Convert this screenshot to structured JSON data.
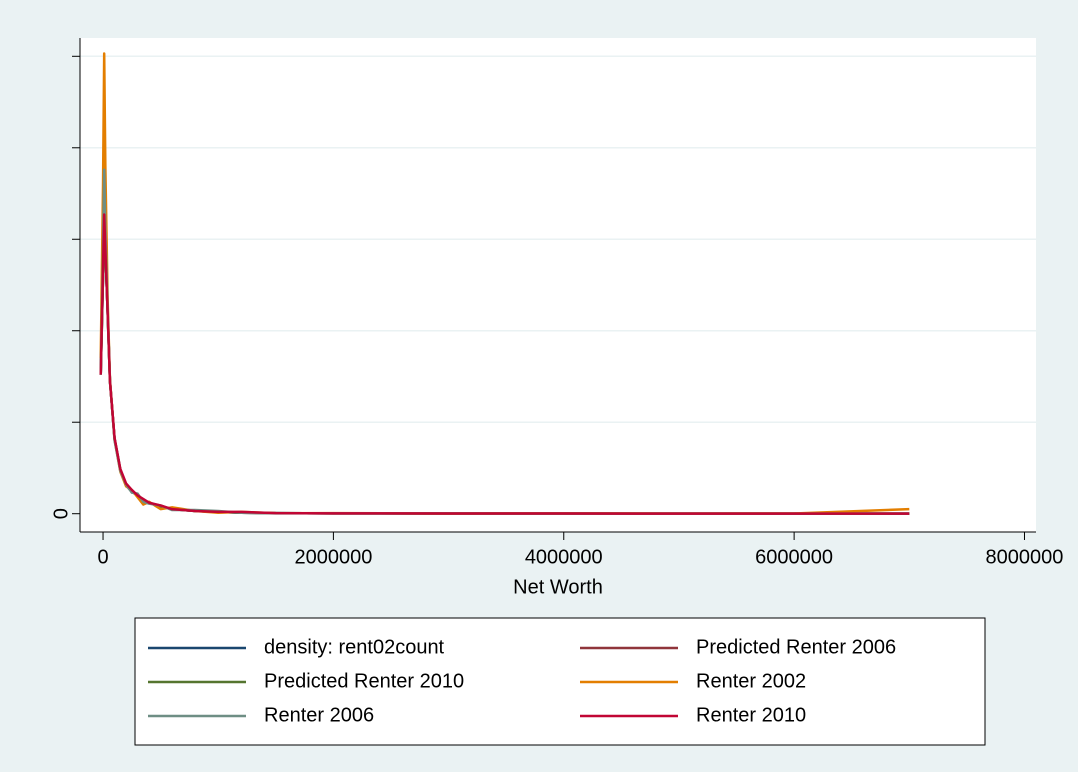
{
  "chart_data": {
    "type": "line",
    "x_label": "Net Worth",
    "x": [
      -20000,
      0,
      10000,
      20000,
      40000,
      60000,
      100000,
      150000,
      200000,
      250000,
      300000,
      350000,
      400000,
      500000,
      600000,
      800000,
      1000000,
      1200000,
      1500000,
      2000000,
      3000000,
      4000000,
      5000000,
      6000000,
      7000000
    ],
    "series": [
      {
        "name": "density: rent02count",
        "color": "#1a476f",
        "values": [
          1.52,
          2.6,
          3.3,
          2.9,
          2.2,
          1.45,
          0.82,
          0.48,
          0.31,
          0.25,
          0.2,
          0.15,
          0.12,
          0.08,
          0.05,
          0.03,
          0.02,
          0.01,
          0.006,
          0.004,
          0.002,
          0.002,
          0.001,
          0.001,
          0.001
        ]
      },
      {
        "name": "Predicted Renter 2006",
        "color": "#90353b",
        "values": [
          1.52,
          2.6,
          3.3,
          2.9,
          2.2,
          1.45,
          0.82,
          0.48,
          0.31,
          0.24,
          0.2,
          0.15,
          0.12,
          0.08,
          0.05,
          0.03,
          0.02,
          0.01,
          0.006,
          0.004,
          0.002,
          0.002,
          0.001,
          0.001,
          0.001
        ]
      },
      {
        "name": "Predicted Renter 2010",
        "color": "#55752f",
        "values": [
          1.52,
          2.6,
          3.3,
          2.9,
          2.2,
          1.45,
          0.82,
          0.48,
          0.31,
          0.24,
          0.2,
          0.15,
          0.12,
          0.08,
          0.05,
          0.03,
          0.02,
          0.01,
          0.006,
          0.004,
          0.002,
          0.002,
          0.001,
          0.001,
          0.001
        ]
      },
      {
        "name": "Renter 2002",
        "color": "#e37e00",
        "values": [
          1.7,
          3.6,
          5.03,
          3.8,
          2.34,
          1.47,
          0.81,
          0.46,
          0.3,
          0.26,
          0.18,
          0.1,
          0.13,
          0.05,
          0.07,
          0.03,
          0.01,
          0.02,
          0.005,
          0.006,
          0.002,
          0.004,
          0.001,
          0.002,
          0.05
        ]
      },
      {
        "name": "Renter 2006",
        "color": "#6e8e84",
        "values": [
          1.52,
          2.9,
          3.76,
          3.1,
          2.25,
          1.46,
          0.8,
          0.47,
          0.32,
          0.23,
          0.22,
          0.13,
          0.11,
          0.09,
          0.04,
          0.04,
          0.03,
          0.01,
          0.004,
          0.005,
          0.003,
          0.002,
          0.001,
          0.001,
          0.002
        ]
      },
      {
        "name": "Renter 2010",
        "color": "#c10534",
        "values": [
          1.52,
          2.7,
          3.27,
          2.9,
          2.2,
          1.45,
          0.83,
          0.49,
          0.33,
          0.26,
          0.2,
          0.16,
          0.12,
          0.09,
          0.05,
          0.03,
          0.02,
          0.02,
          0.006,
          0.004,
          0.002,
          0.002,
          0.001,
          0.001,
          0.001
        ]
      }
    ],
    "xlim": [
      -200000,
      8100000
    ],
    "xticks": [
      0,
      2000000,
      4000000,
      6000000,
      8000000
    ],
    "ylim": [
      -0.2,
      5.2
    ],
    "yticks": [
      0
    ],
    "minor_yticks": [
      1,
      2,
      3,
      4,
      5
    ],
    "grid": true,
    "legend": "bottom"
  }
}
